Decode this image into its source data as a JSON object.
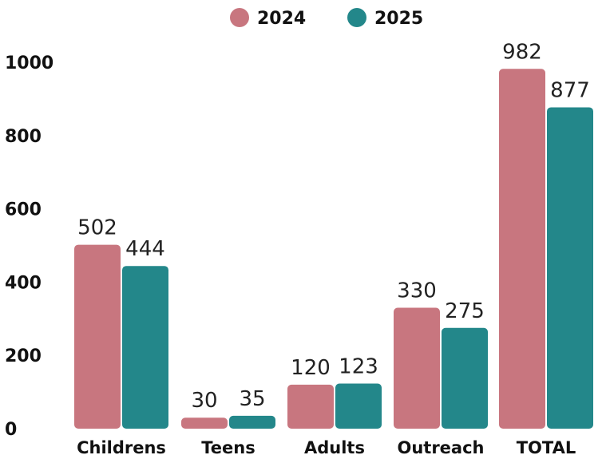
{
  "chart_data": {
    "type": "bar",
    "categories": [
      "Childrens",
      "Teens",
      "Adults",
      "Outreach",
      "TOTAL"
    ],
    "series": [
      {
        "name": "2024",
        "values": [
          502,
          30,
          120,
          330,
          982
        ],
        "color": "#c8767f"
      },
      {
        "name": "2025",
        "values": [
          444,
          35,
          123,
          275,
          877
        ],
        "color": "#23878a"
      }
    ],
    "ylim": [
      0,
      1000
    ],
    "yticks": [
      0,
      200,
      400,
      600,
      800,
      1000
    ],
    "grid": false,
    "legend_position": "top-center",
    "data_labels": true
  }
}
